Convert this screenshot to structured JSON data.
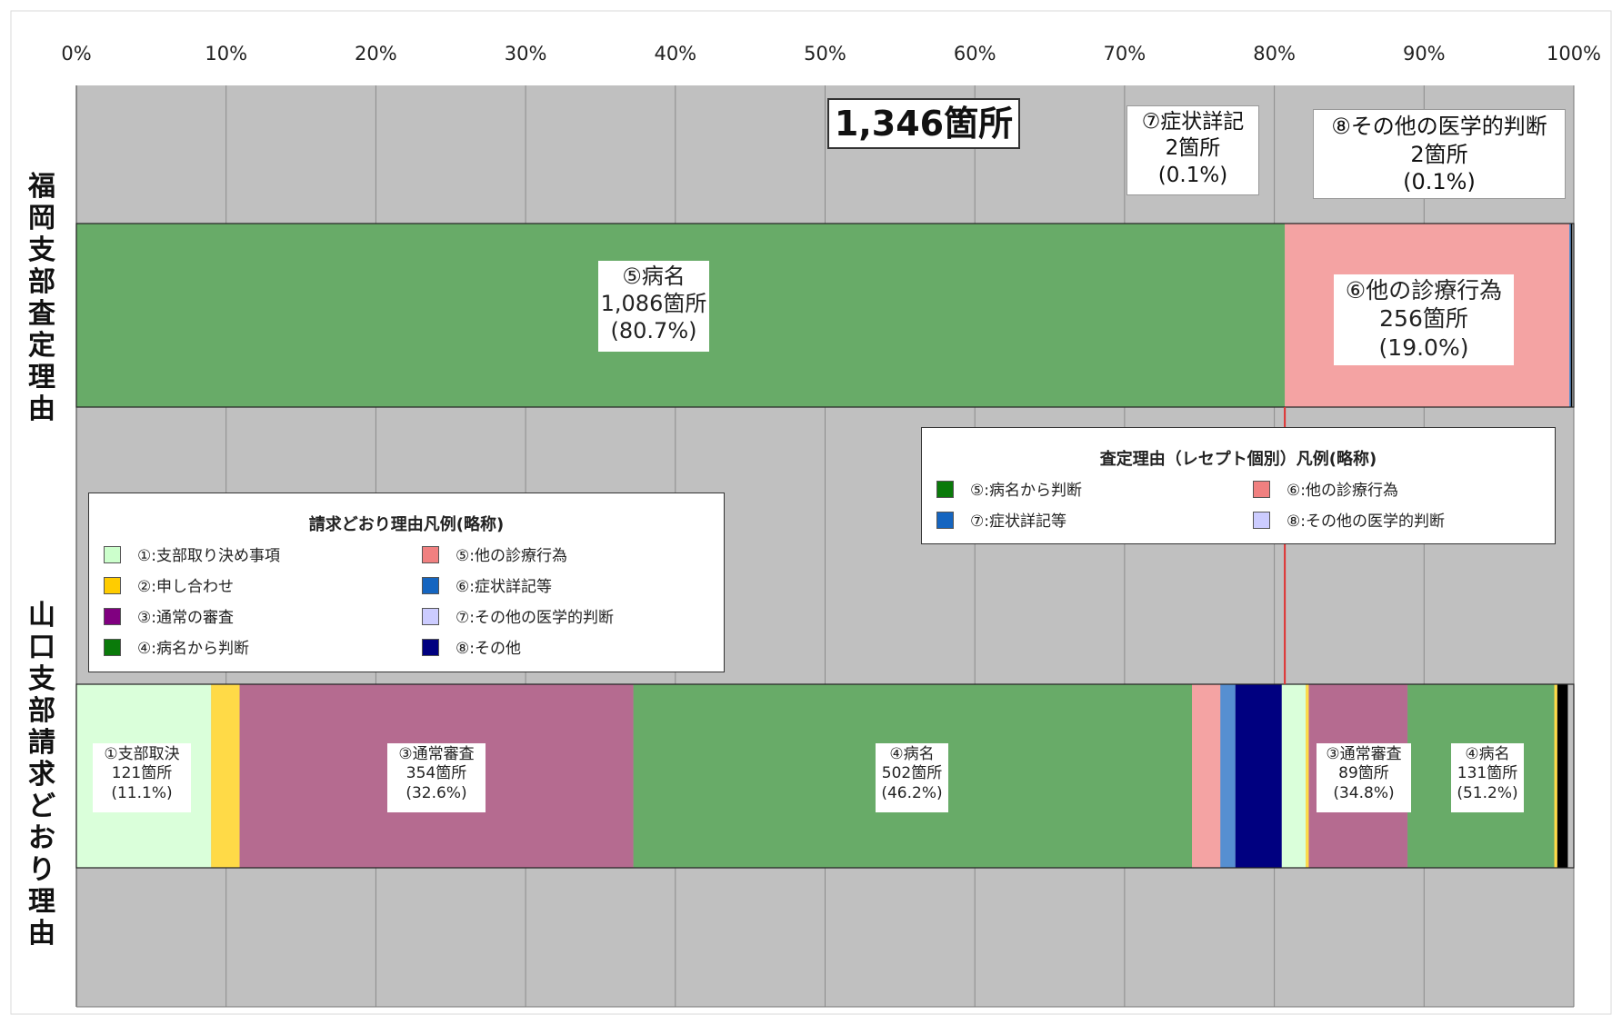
{
  "chart_data": {
    "type": "bar",
    "orientation": "horizontal-stacked-100",
    "x_ticks": [
      "0%",
      "10%",
      "20%",
      "30%",
      "40%",
      "50%",
      "60%",
      "70%",
      "80%",
      "90%",
      "100%"
    ],
    "xlim": [
      0,
      100
    ],
    "grid": true,
    "categories": [
      "福岡支部査定理由",
      "山口支部請求どおり理由"
    ],
    "total_label": "1,346箇所",
    "fukuoka": {
      "segments": [
        {
          "key": "disease",
          "name": "⑤病名",
          "count": "1,086箇所",
          "pct": "(80.7%)",
          "value": 80.7,
          "color": "#2e8b2e"
        },
        {
          "key": "other_tx",
          "name": "⑥他の診療行為",
          "count": "256箇所",
          "pct": "(19.0%)",
          "value": 19.0,
          "color": "#f08080"
        },
        {
          "key": "symptom",
          "name": "⑦症状詳記",
          "count": "2箇所",
          "pct": "(0.1%)",
          "value": 0.1,
          "color": "#1565c0"
        },
        {
          "key": "medical",
          "name": "⑧その他の医学的判断",
          "count": "2箇所",
          "pct": "(0.1%)",
          "value": 0.1,
          "color": "#000000"
        }
      ]
    },
    "yamaguchi": {
      "segments": [
        {
          "key": "y1",
          "name": "①支部取決",
          "count": "121箇所",
          "pct": "(11.1%)",
          "value": 9.0,
          "color": "#ccffcc"
        },
        {
          "key": "y2",
          "name": "",
          "count": "",
          "pct": "",
          "value": 1.9,
          "color": "#ffcc00"
        },
        {
          "key": "y3",
          "name": "③通常審査",
          "count": "354箇所",
          "pct": "(32.6%)",
          "value": 26.3,
          "color": "#993366"
        },
        {
          "key": "y4",
          "name": "④病名",
          "count": "502箇所",
          "pct": "(46.2%)",
          "value": 37.3,
          "color": "#2e8b2e"
        },
        {
          "key": "y5",
          "name": "",
          "count": "",
          "pct": "",
          "value": 1.9,
          "color": "#f08080"
        },
        {
          "key": "y6",
          "name": "",
          "count": "",
          "pct": "",
          "value": 1.0,
          "color": "#1565c0"
        },
        {
          "key": "y7",
          "name": "",
          "count": "",
          "pct": "",
          "value": 3.1,
          "color": "#000080"
        },
        {
          "key": "y8",
          "name": "",
          "count": "",
          "pct": "",
          "value": 1.6,
          "color": "#ccffcc"
        },
        {
          "key": "y9",
          "name": "",
          "count": "",
          "pct": "",
          "value": 0.2,
          "color": "#ffcc00"
        },
        {
          "key": "y10",
          "name": "③通常審査",
          "count": "89箇所",
          "pct": "(34.8%)",
          "value": 6.6,
          "color": "#993366"
        },
        {
          "key": "y11",
          "name": "④病名",
          "count": "131箇所",
          "pct": "(51.2%)",
          "value": 9.8,
          "color": "#2e8b2e"
        },
        {
          "key": "y12",
          "name": "",
          "count": "",
          "pct": "",
          "value": 0.2,
          "color": "#ffcc00"
        },
        {
          "key": "y13",
          "name": "",
          "count": "",
          "pct": "",
          "value": 0.7,
          "color": "#000000"
        }
      ]
    },
    "ref_line_value": 80.7,
    "ref_line_color": "#e03030"
  },
  "legend_seitei": {
    "title": "査定理由（レセプト個別）凡例(略称)",
    "items": [
      {
        "label": "⑤:病名から判断",
        "color": "#0a7a0a"
      },
      {
        "label": "⑥:他の診療行為",
        "color": "#f08080"
      },
      {
        "label": "⑦:症状詳記等",
        "color": "#1565c0"
      },
      {
        "label": "⑧:その他の医学的判断",
        "color": "#ccccff"
      }
    ]
  },
  "legend_seikyu": {
    "title": "請求どおり理由凡例(略称)",
    "items": [
      {
        "label": "①:支部取り決め事項",
        "color": "#ccffcc"
      },
      {
        "label": "②:申し合わせ",
        "color": "#ffcc00"
      },
      {
        "label": "③:通常の審査",
        "color": "#800080"
      },
      {
        "label": "④:病名から判断",
        "color": "#0a7a0a"
      },
      {
        "label": "⑤:他の診療行為",
        "color": "#f08080"
      },
      {
        "label": "⑥:症状詳記等",
        "color": "#1565c0"
      },
      {
        "label": "⑦:その他の医学的判断",
        "color": "#ccccff"
      },
      {
        "label": "⑧:その他",
        "color": "#000080"
      }
    ]
  },
  "colors": {
    "plot_bg": "#c0c0c0",
    "grid": "#8c8c8c"
  }
}
